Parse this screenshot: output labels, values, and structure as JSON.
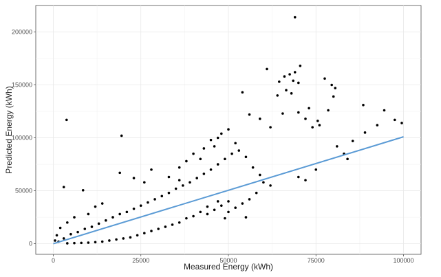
{
  "chart_data": {
    "type": "scatter",
    "title": "",
    "xlabel": "Measured Energy (kWh)",
    "ylabel": "Predicted Energy (kWh)",
    "xlim": [
      -5000,
      105000
    ],
    "ylim": [
      -10000,
      225000
    ],
    "x_ticks": [
      0,
      25000,
      50000,
      75000,
      100000
    ],
    "x_tick_labels": [
      "0",
      "25000",
      "50000",
      "75000",
      "100000"
    ],
    "y_ticks": [
      0,
      50000,
      100000,
      150000,
      200000
    ],
    "y_tick_labels": [
      "0",
      "50000",
      "100000",
      "150000",
      "200000"
    ],
    "grid": true,
    "legend": "none",
    "point_color": "#000000",
    "fit_line": {
      "color": "#5b9bd5",
      "x": [
        0,
        100000
      ],
      "y": [
        0,
        101000
      ]
    },
    "points": [
      [
        69000,
        214000
      ],
      [
        61000,
        165000
      ],
      [
        70500,
        168000
      ],
      [
        69000,
        162000
      ],
      [
        66000,
        158000
      ],
      [
        67500,
        160000
      ],
      [
        68500,
        154000
      ],
      [
        64500,
        153000
      ],
      [
        70000,
        152000
      ],
      [
        77500,
        156000
      ],
      [
        79500,
        150000
      ],
      [
        66500,
        145000
      ],
      [
        68000,
        142000
      ],
      [
        54000,
        143000
      ],
      [
        64000,
        140000
      ],
      [
        80500,
        147000
      ],
      [
        80000,
        139000
      ],
      [
        88500,
        131000
      ],
      [
        94500,
        126000
      ],
      [
        73000,
        128000
      ],
      [
        78500,
        126000
      ],
      [
        65500,
        123000
      ],
      [
        70000,
        124000
      ],
      [
        75500,
        116000
      ],
      [
        97500,
        117000
      ],
      [
        99500,
        114000
      ],
      [
        92500,
        112000
      ],
      [
        89000,
        105000
      ],
      [
        85500,
        97000
      ],
      [
        3800,
        117000
      ],
      [
        19500,
        102000
      ],
      [
        19000,
        67000
      ],
      [
        3000,
        53500
      ],
      [
        8500,
        50500
      ],
      [
        62000,
        110000
      ],
      [
        59000,
        118000
      ],
      [
        56000,
        122000
      ],
      [
        72000,
        118000
      ],
      [
        74000,
        110000
      ],
      [
        76000,
        112000
      ],
      [
        81000,
        92000
      ],
      [
        83000,
        85000
      ],
      [
        84000,
        80000
      ],
      [
        75000,
        70000
      ],
      [
        70000,
        63000
      ],
      [
        72000,
        60000
      ],
      [
        55000,
        25000
      ],
      [
        50000,
        30000
      ],
      [
        47000,
        40000
      ],
      [
        44000,
        35000
      ],
      [
        49000,
        24000
      ],
      [
        36000,
        60000
      ],
      [
        33000,
        63000
      ],
      [
        28000,
        70000
      ],
      [
        26000,
        58000
      ],
      [
        23000,
        62000
      ],
      [
        14000,
        38000
      ],
      [
        12000,
        35000
      ],
      [
        10000,
        28000
      ],
      [
        6000,
        25000
      ],
      [
        4000,
        20000
      ],
      [
        2000,
        15000
      ],
      [
        1000,
        8000
      ],
      [
        500,
        3000
      ],
      [
        1500,
        2000
      ],
      [
        3000,
        5000
      ],
      [
        5000,
        9000
      ],
      [
        7000,
        11000
      ],
      [
        9000,
        14000
      ],
      [
        11000,
        16000
      ],
      [
        13000,
        19000
      ],
      [
        15000,
        22000
      ],
      [
        17000,
        25000
      ],
      [
        19000,
        28000
      ],
      [
        21000,
        30000
      ],
      [
        23000,
        33000
      ],
      [
        25000,
        36000
      ],
      [
        27000,
        39000
      ],
      [
        29000,
        42000
      ],
      [
        31000,
        45000
      ],
      [
        33000,
        48000
      ],
      [
        35000,
        52000
      ],
      [
        37000,
        55000
      ],
      [
        39000,
        58000
      ],
      [
        41000,
        62000
      ],
      [
        43000,
        66000
      ],
      [
        45000,
        70000
      ],
      [
        47000,
        75000
      ],
      [
        49000,
        80000
      ],
      [
        51000,
        85000
      ],
      [
        45000,
        98000
      ],
      [
        48000,
        104000
      ],
      [
        50000,
        108000
      ],
      [
        47000,
        100000
      ],
      [
        43000,
        90000
      ],
      [
        40000,
        85000
      ],
      [
        38000,
        78000
      ],
      [
        36000,
        72000
      ],
      [
        42000,
        80000
      ],
      [
        46000,
        92000
      ],
      [
        52000,
        95000
      ],
      [
        53000,
        88000
      ],
      [
        55000,
        82000
      ],
      [
        57000,
        72000
      ],
      [
        59000,
        65000
      ],
      [
        60000,
        58000
      ],
      [
        62000,
        55000
      ],
      [
        58000,
        48000
      ],
      [
        56000,
        42000
      ],
      [
        54000,
        38000
      ],
      [
        52000,
        34000
      ],
      [
        50000,
        40000
      ],
      [
        48000,
        36000
      ],
      [
        46000,
        32000
      ],
      [
        44000,
        28000
      ],
      [
        42000,
        30000
      ],
      [
        40000,
        26000
      ],
      [
        38000,
        24000
      ],
      [
        36000,
        20000
      ],
      [
        34000,
        18000
      ],
      [
        32000,
        16000
      ],
      [
        30000,
        14000
      ],
      [
        28000,
        12000
      ],
      [
        26000,
        10000
      ],
      [
        24000,
        8000
      ],
      [
        22000,
        6000
      ],
      [
        20000,
        5000
      ],
      [
        18000,
        4000
      ],
      [
        16000,
        3000
      ],
      [
        14000,
        2000
      ],
      [
        12000,
        1500
      ],
      [
        10000,
        1000
      ],
      [
        8000,
        800
      ],
      [
        6000,
        600
      ],
      [
        4000,
        400
      ]
    ]
  }
}
